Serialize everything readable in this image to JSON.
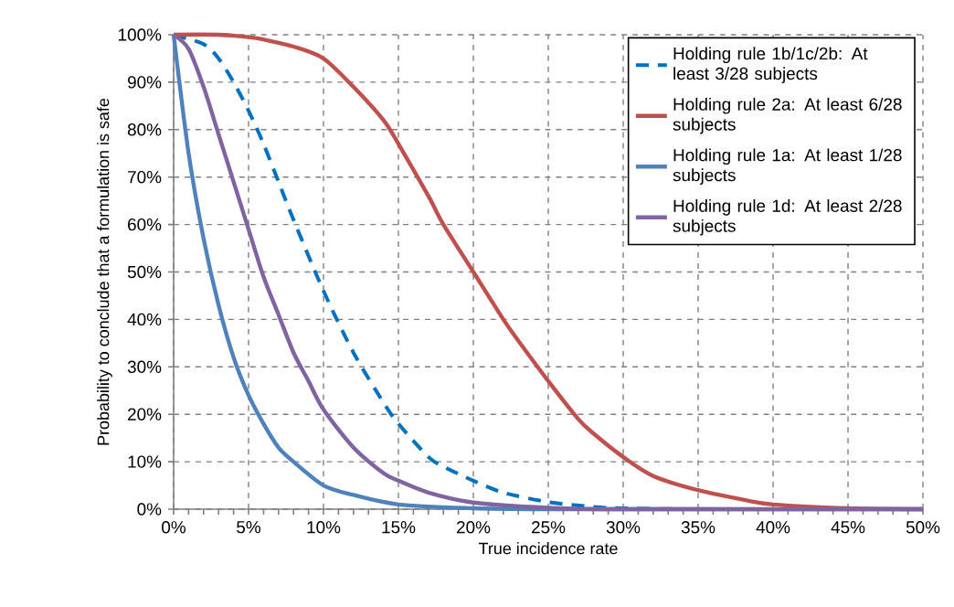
{
  "chart_data": {
    "type": "line",
    "xlabel": "True incidence rate",
    "ylabel": "Probability to conclude that a formulation is safe",
    "xlim": [
      0,
      50
    ],
    "ylim": [
      0,
      100
    ],
    "xticks": [
      {
        "value": 0,
        "label": "0%"
      },
      {
        "value": 5,
        "label": "5%"
      },
      {
        "value": 10,
        "label": "10%"
      },
      {
        "value": 15,
        "label": "15%"
      },
      {
        "value": 20,
        "label": "20%"
      },
      {
        "value": 25,
        "label": "25%"
      },
      {
        "value": 30,
        "label": "30%"
      },
      {
        "value": 35,
        "label": "35%"
      },
      {
        "value": 40,
        "label": "40%"
      },
      {
        "value": 45,
        "label": "45%"
      },
      {
        "value": 50,
        "label": "50%"
      }
    ],
    "yticks": [
      {
        "value": 0,
        "label": "0%"
      },
      {
        "value": 10,
        "label": "10%"
      },
      {
        "value": 20,
        "label": "20%"
      },
      {
        "value": 30,
        "label": "30%"
      },
      {
        "value": 40,
        "label": "40%"
      },
      {
        "value": 50,
        "label": "50%"
      },
      {
        "value": 60,
        "label": "60%"
      },
      {
        "value": 70,
        "label": "70%"
      },
      {
        "value": 80,
        "label": "80%"
      },
      {
        "value": 90,
        "label": "90%"
      },
      {
        "value": 100,
        "label": "100%"
      }
    ],
    "grid": true,
    "legend": "top right",
    "marker": "none",
    "series": [
      {
        "name": "Holding rule 1b/1c/2b: At least 3/28 subjects",
        "color": "#0070c0",
        "line_style": "dashed",
        "x": [
          0,
          2,
          3,
          4,
          5,
          6,
          7,
          8,
          10,
          12,
          14,
          15,
          17,
          18,
          20,
          22,
          25,
          28,
          30,
          35,
          50
        ],
        "values": [
          100,
          98,
          95,
          90,
          84,
          77,
          69,
          61,
          46,
          33,
          22.5,
          18,
          11,
          9,
          6,
          3.5,
          1.5,
          0.5,
          0.2,
          0,
          0
        ]
      },
      {
        "name": "Holding rule 2a: At least 6/28 subjects",
        "color": "#c0504d",
        "line_style": "solid",
        "x": [
          0,
          3,
          5,
          6,
          8,
          10,
          12,
          14,
          15,
          17,
          18,
          20,
          22,
          23,
          25,
          27,
          28,
          30,
          32,
          35,
          38,
          40,
          45,
          50
        ],
        "values": [
          100,
          100,
          99.5,
          99,
          97.5,
          95,
          89,
          82,
          77,
          66,
          60,
          50,
          40,
          35.5,
          27,
          19,
          16,
          11,
          7,
          4,
          2,
          1,
          0.2,
          0
        ]
      },
      {
        "name": "Holding rule 1a: At least 1/28 subjects",
        "color": "#4f81bd",
        "line_style": "solid",
        "x": [
          0,
          1,
          2,
          3,
          4,
          5,
          6,
          7,
          8,
          10,
          12,
          15,
          20,
          25,
          30,
          40,
          50
        ],
        "values": [
          100,
          75,
          57,
          43,
          32,
          24,
          18,
          13,
          10,
          5,
          3,
          1,
          0.2,
          0,
          0,
          0,
          0
        ]
      },
      {
        "name": "Holding rule 1d: At least 2/28 subjects",
        "color": "#8064a2",
        "line_style": "solid",
        "x": [
          0,
          1,
          2,
          3,
          4,
          5,
          6,
          7,
          8,
          9,
          10,
          12,
          14,
          15,
          17,
          20,
          25,
          30,
          50
        ],
        "values": [
          100,
          97,
          89,
          79,
          69,
          59,
          49,
          41,
          33,
          27,
          21,
          13,
          7.6,
          6,
          3.5,
          1.4,
          0.3,
          0,
          0
        ]
      }
    ]
  }
}
